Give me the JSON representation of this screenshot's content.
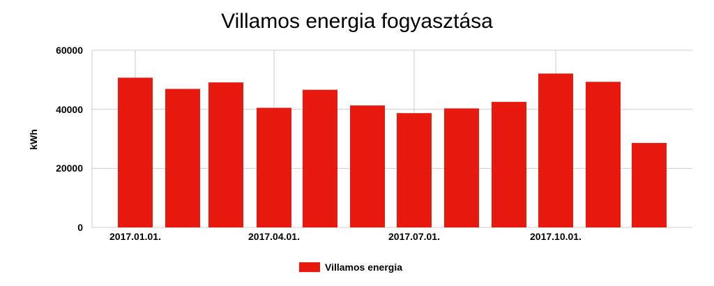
{
  "chart_data": {
    "type": "bar",
    "title": "Villamos energia fogyasztása",
    "ylabel": "kWh",
    "xlabel": "",
    "ylim": [
      0,
      60000
    ],
    "yticks": [
      "0",
      "20000",
      "40000",
      "60000"
    ],
    "xtick_labels": [
      "2017.01.01.",
      "2017.04.01.",
      "2017.07.01.",
      "2017.10.01."
    ],
    "categories": [
      "2017-01",
      "2017-02",
      "2017-03",
      "2017-04",
      "2017-05",
      "2017-06",
      "2017-07",
      "2017-08",
      "2017-09",
      "2017-10",
      "2017-11",
      "2017-12"
    ],
    "series": [
      {
        "name": "Villamos energia",
        "color": "#e8190e",
        "values": [
          50700,
          46900,
          49100,
          40500,
          46600,
          41300,
          38700,
          40300,
          42500,
          52100,
          49300,
          28600
        ]
      }
    ],
    "grid": true,
    "legend_position": "bottom"
  }
}
